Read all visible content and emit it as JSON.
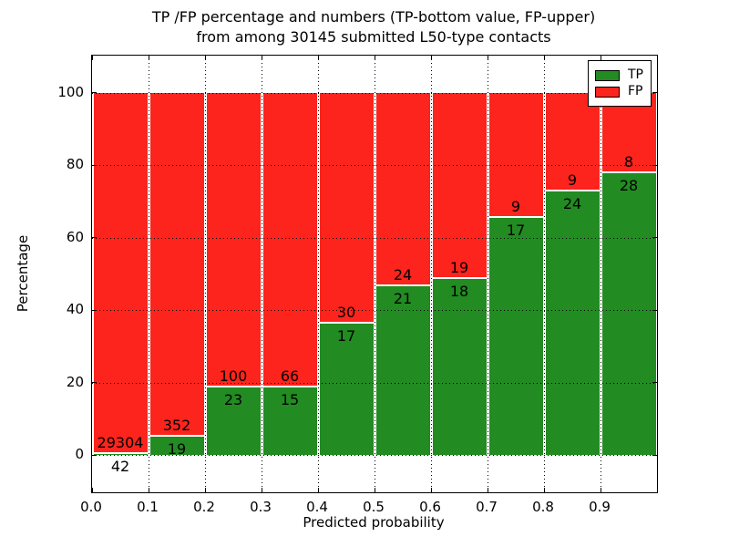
{
  "title": {
    "line1": "TP /FP percentage and numbers (TP-bottom value, FP-upper)",
    "line2": "from among 30145 submitted L50-type contacts"
  },
  "colors": {
    "tp_green": "#228b22",
    "fp_red": "#fc241c",
    "axis": "#000000",
    "background": "#ffffff"
  },
  "legend": {
    "items": [
      {
        "label": "TP",
        "color_key": "tp_green"
      },
      {
        "label": "FP",
        "color_key": "fp_red"
      }
    ]
  },
  "chart_data": {
    "type": "bar",
    "stacked": true,
    "normalized": "percent (each bin stacks to 100)",
    "title": "TP /FP percentage and numbers (TP-bottom value, FP-upper) from among 30145 submitted L50-type contacts",
    "xlabel": "Predicted probability",
    "ylabel": "Percentage",
    "xlim": [
      0.0,
      1.0
    ],
    "ylim": [
      -10,
      110
    ],
    "bin_width": 0.1,
    "bin_starts": [
      0.0,
      0.1,
      0.2,
      0.3,
      0.4,
      0.5,
      0.6,
      0.7,
      0.8,
      0.9
    ],
    "x_tick_labels": [
      "0.0",
      "0.1",
      "0.2",
      "0.3",
      "0.4",
      "0.5",
      "0.6",
      "0.7",
      "0.8",
      "0.9"
    ],
    "y_ticks": [
      0,
      20,
      40,
      60,
      80,
      100
    ],
    "grid": "dotted, on both axes",
    "legend_position": "upper right",
    "total_submitted": 30145,
    "series": [
      {
        "name": "TP",
        "color_key": "tp_green",
        "counts": [
          42,
          19,
          23,
          15,
          17,
          21,
          18,
          17,
          24,
          28
        ]
      },
      {
        "name": "FP",
        "color_key": "fp_red",
        "counts": [
          29304,
          352,
          100,
          66,
          30,
          24,
          19,
          9,
          9,
          8
        ]
      }
    ],
    "tp_percent_of_bin": [
      0.1,
      5.1,
      18.7,
      18.5,
      36.2,
      46.7,
      48.6,
      65.4,
      72.7,
      77.8
    ]
  }
}
